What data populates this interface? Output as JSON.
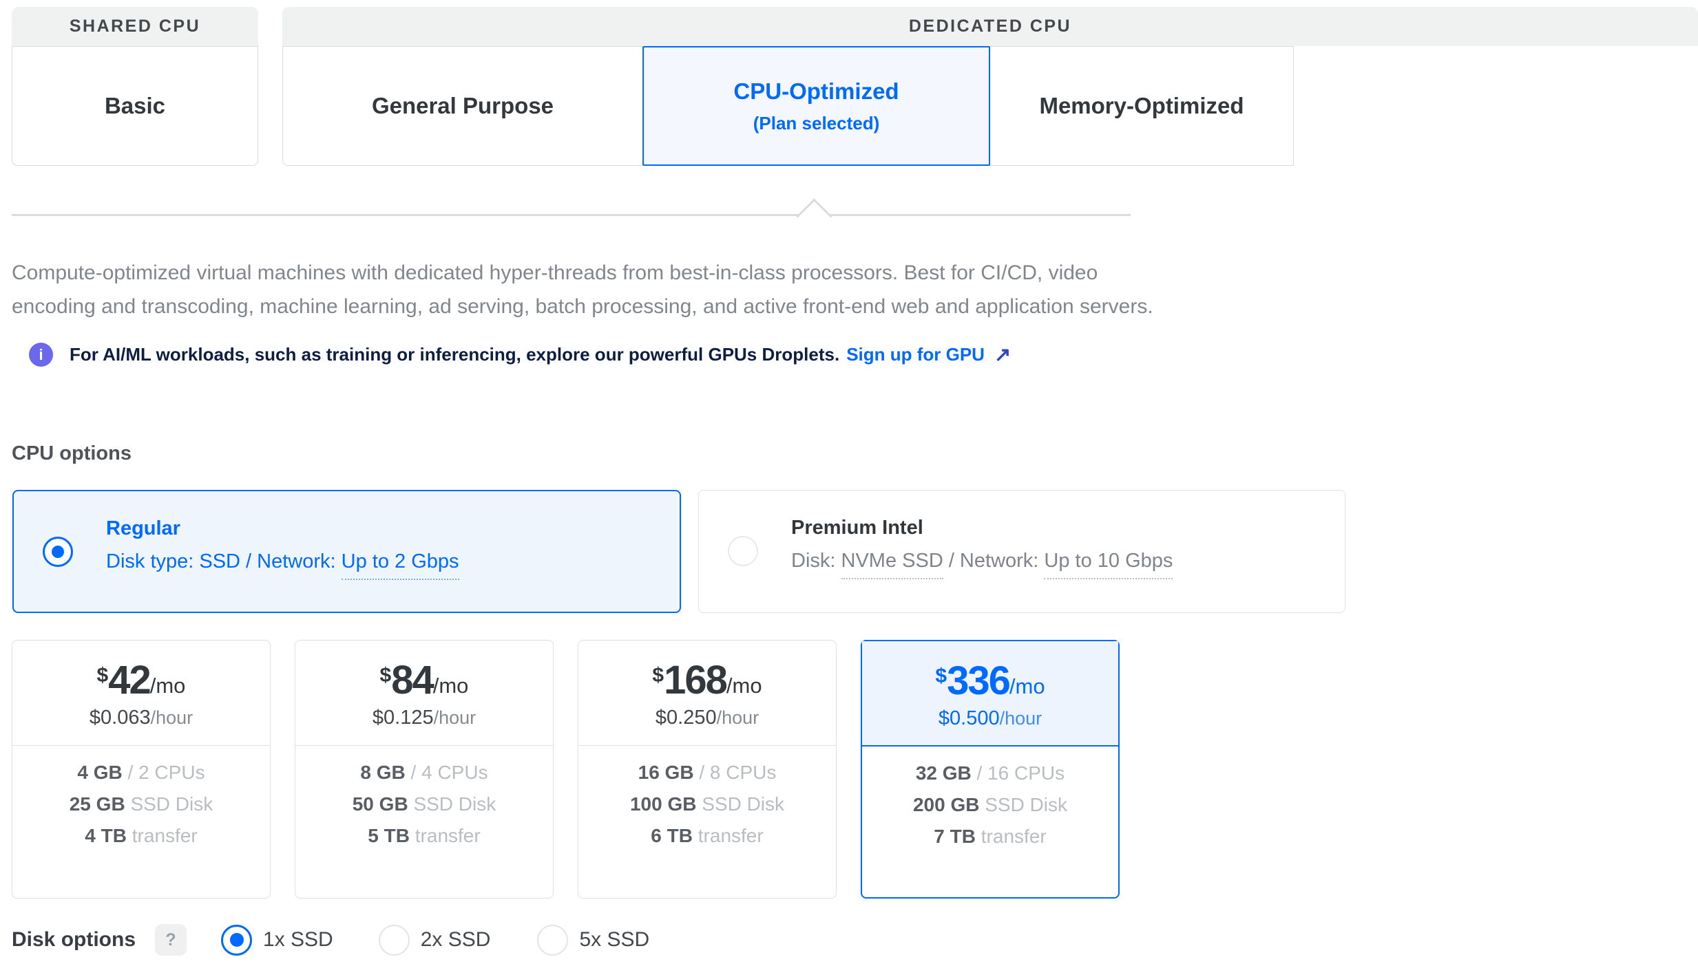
{
  "colors": {
    "accent": "#0069ff",
    "info_icon_bg": "#6b68ee",
    "selected_tint": "#eef5fd"
  },
  "plan_category_tabs": {
    "shared": {
      "header": "SHARED CPU",
      "tabs": [
        {
          "label": "Basic",
          "selected": false
        }
      ]
    },
    "dedicated": {
      "header": "DEDICATED CPU",
      "tabs": [
        {
          "label": "General Purpose",
          "selected": false
        },
        {
          "label": "CPU-Optimized",
          "note": "(Plan selected)",
          "selected": true
        },
        {
          "label": "Memory-Optimized",
          "selected": false
        }
      ]
    }
  },
  "description": {
    "line1": "Compute-optimized virtual machines with dedicated hyper-threads from best-in-class processors. Best for CI/CD, video",
    "line2": "encoding and transcoding, machine learning, ad serving, batch processing, and active front-end web and application servers."
  },
  "info_banner": {
    "icon": "i",
    "message": "For AI/ML workloads, such as training or inferencing, explore our powerful GPUs Droplets.",
    "link_label": "Sign up for GPU",
    "arrow": "↗"
  },
  "cpu_options": {
    "heading": "CPU options",
    "regular": {
      "name": "Regular",
      "details_prefix": "Disk type: SSD / Network: ",
      "network": "Up to 2 Gbps",
      "selected": true
    },
    "premium": {
      "name": "Premium Intel",
      "disk_prefix": "Disk: ",
      "disk": "NVMe SSD",
      "network_prefix": " / Network: ",
      "network": "Up to 10 Gbps",
      "selected": false
    }
  },
  "plans": [
    {
      "currency": "$",
      "monthly": "42",
      "monthly_unit": "/mo",
      "hourly": "$0.063",
      "hourly_unit": "/hour",
      "selected": false,
      "specs": [
        {
          "value": "4 GB",
          "detail": "/ 2 CPUs"
        },
        {
          "value": "25 GB",
          "detail": "SSD Disk"
        },
        {
          "value": "4 TB",
          "detail": "transfer"
        }
      ]
    },
    {
      "currency": "$",
      "monthly": "84",
      "monthly_unit": "/mo",
      "hourly": "$0.125",
      "hourly_unit": "/hour",
      "selected": false,
      "specs": [
        {
          "value": "8 GB",
          "detail": "/ 4 CPUs"
        },
        {
          "value": "50 GB",
          "detail": "SSD Disk"
        },
        {
          "value": "5 TB",
          "detail": "transfer"
        }
      ]
    },
    {
      "currency": "$",
      "monthly": "168",
      "monthly_unit": "/mo",
      "hourly": "$0.250",
      "hourly_unit": "/hour",
      "selected": false,
      "specs": [
        {
          "value": "16 GB",
          "detail": "/ 8 CPUs"
        },
        {
          "value": "100 GB",
          "detail": "SSD Disk"
        },
        {
          "value": "6 TB",
          "detail": "transfer"
        }
      ]
    },
    {
      "currency": "$",
      "monthly": "336",
      "monthly_unit": "/mo",
      "hourly": "$0.500",
      "hourly_unit": "/hour",
      "selected": true,
      "specs": [
        {
          "value": "32 GB",
          "detail": "/ 16 CPUs"
        },
        {
          "value": "200 GB",
          "detail": "SSD Disk"
        },
        {
          "value": "7 TB",
          "detail": "transfer"
        }
      ]
    }
  ],
  "disk_options": {
    "label": "Disk options",
    "help": "?",
    "choices": [
      {
        "label": "1x SSD",
        "selected": true
      },
      {
        "label": "2x SSD",
        "selected": false
      },
      {
        "label": "5x SSD",
        "selected": false
      }
    ]
  }
}
